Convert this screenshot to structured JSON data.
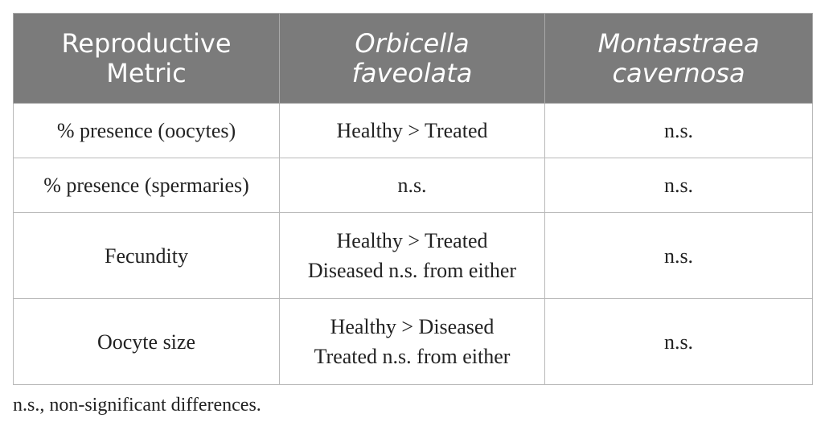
{
  "table": {
    "headers": [
      {
        "lines": [
          "Reproductive",
          "Metric"
        ],
        "italic": false
      },
      {
        "lines": [
          "Orbicella",
          "faveolata"
        ],
        "italic": true
      },
      {
        "lines": [
          "Montastraea",
          "cavernosa"
        ],
        "italic": true
      }
    ],
    "rows": [
      {
        "metric": "% presence (oocytes)",
        "orbicella": [
          "Healthy > Treated"
        ],
        "montastraea": "n.s."
      },
      {
        "metric": "% presence (spermaries)",
        "orbicella": [
          "n.s."
        ],
        "montastraea": "n.s."
      },
      {
        "metric": "Fecundity",
        "orbicella": [
          "Healthy > Treated",
          "Diseased n.s. from either"
        ],
        "montastraea": "n.s."
      },
      {
        "metric": "Oocyte size",
        "orbicella": [
          "Healthy > Diseased",
          "Treated n.s. from either"
        ],
        "montastraea": "n.s."
      }
    ]
  },
  "footnote": "n.s., non-significant differences.",
  "colors": {
    "header_background": "#7b7b7b",
    "header_text": "#ffffff",
    "grid_line": "#b9b9b9",
    "body_text": "#222222"
  }
}
